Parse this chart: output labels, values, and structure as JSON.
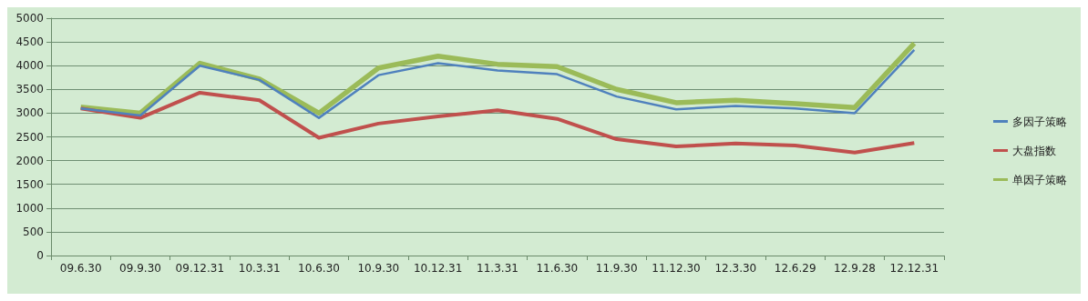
{
  "chart_data": {
    "type": "line",
    "categories": [
      "09.6.30",
      "09.9.30",
      "09.12.31",
      "10.3.31",
      "10.6.30",
      "10.9.30",
      "10.12.31",
      "11.3.31",
      "11.6.30",
      "11.9.30",
      "11.12.30",
      "12.3.30",
      "12.6.29",
      "12.9.28",
      "12.12.31"
    ],
    "series": [
      {
        "name": "多因子策略",
        "color": "#4f81bd",
        "values": [
          3100,
          2950,
          4000,
          3700,
          2900,
          3800,
          4050,
          3900,
          3820,
          3350,
          3080,
          3150,
          3100,
          3000,
          4330
        ]
      },
      {
        "name": "大盘指数",
        "color": "#c0504d",
        "values": [
          3100,
          2900,
          3430,
          3270,
          2480,
          2780,
          2930,
          3060,
          2880,
          2450,
          2300,
          2360,
          2320,
          2170,
          2370
        ]
      },
      {
        "name": "单因子策略",
        "color": "#9bbb59",
        "values": [
          3130,
          3000,
          4050,
          3720,
          3000,
          3950,
          4200,
          4030,
          3980,
          3500,
          3220,
          3270,
          3200,
          3120,
          4470
        ]
      }
    ],
    "ylim": [
      0,
      5000
    ],
    "yticks": [
      0,
      500,
      1000,
      1500,
      2000,
      2500,
      3000,
      3500,
      4000,
      4500,
      5000
    ],
    "grid": "y",
    "legend": "right",
    "marker": "none",
    "line_style": "solid"
  }
}
